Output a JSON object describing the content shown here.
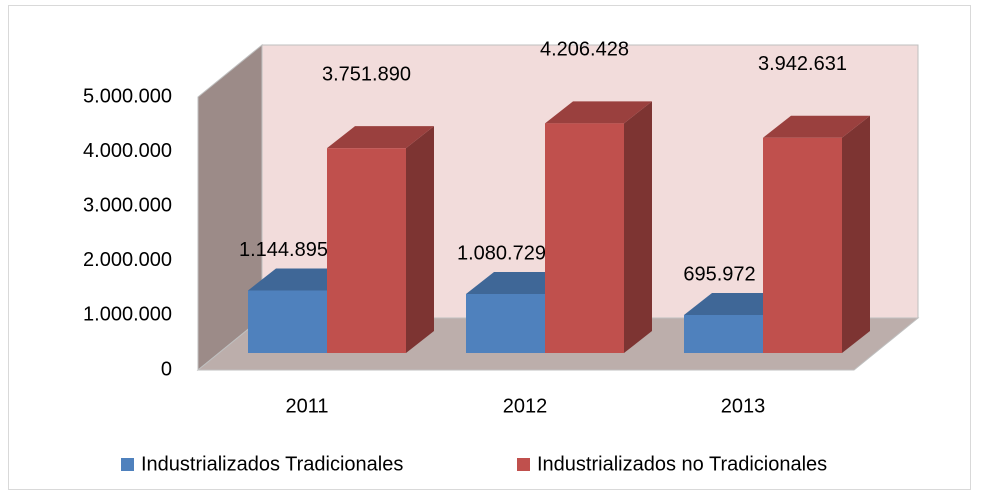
{
  "chart_data": {
    "type": "bar3d",
    "categories": [
      "2011",
      "2012",
      "2013"
    ],
    "series": [
      {
        "name": "Industrializados Tradicionales",
        "color": "#4f81bd",
        "values": [
          1144895,
          1080729,
          695972
        ],
        "value_labels": [
          "1.144.895",
          "1.080.729",
          "695.972"
        ]
      },
      {
        "name": "Industrializados no Tradicionales",
        "color": "#c0504d",
        "values": [
          3751890,
          4206428,
          3942631
        ],
        "value_labels": [
          "3.751.890",
          "4.206.428",
          "3.942.631"
        ]
      }
    ],
    "ylim": [
      0,
      5000000
    ],
    "yticks": [
      0,
      {
        "value": 1000000,
        "label": "1.000.000"
      },
      {
        "value": 2000000,
        "label": "2.000.000"
      },
      {
        "value": 3000000,
        "label": "3.000.000"
      },
      {
        "value": 4000000,
        "label": "4.000.000"
      },
      {
        "value": 5000000,
        "label": "5.000.000"
      }
    ],
    "legend": "bottom"
  }
}
